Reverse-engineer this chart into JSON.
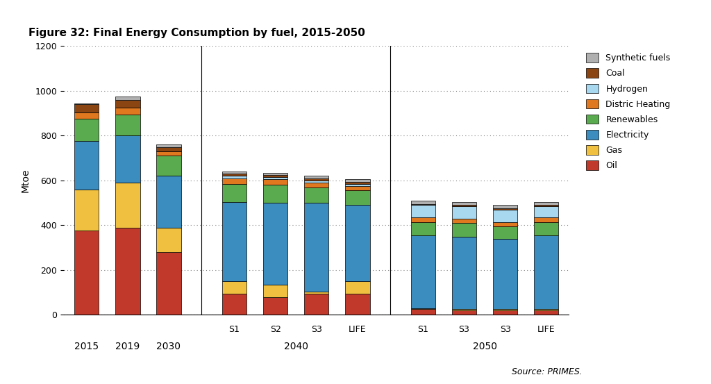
{
  "title": "Figure 32: Final Energy Consumption by fuel, 2015-2050",
  "ylabel": "Mtoe",
  "source": "Source: PRIMES.",
  "ylim": [
    0,
    1200
  ],
  "yticks": [
    0,
    200,
    400,
    600,
    800,
    1000,
    1200
  ],
  "bar_groups": [
    {
      "label": "2015",
      "group": "standalone",
      "sublabel": ""
    },
    {
      "label": "2019",
      "group": "standalone",
      "sublabel": ""
    },
    {
      "label": "2030",
      "group": "standalone",
      "sublabel": ""
    },
    {
      "label": "S1",
      "group": "2040",
      "sublabel": "S1"
    },
    {
      "label": "S2",
      "group": "2040",
      "sublabel": "S2"
    },
    {
      "label": "S3",
      "group": "2040",
      "sublabel": "S3"
    },
    {
      "label": "LIFE",
      "group": "2040",
      "sublabel": "LIFE"
    },
    {
      "label": "S1",
      "group": "2050",
      "sublabel": "S1"
    },
    {
      "label": "S3",
      "group": "2050",
      "sublabel": "S3"
    },
    {
      "label": "S3",
      "group": "2050",
      "sublabel": "S3"
    },
    {
      "label": "LIFE",
      "group": "2050",
      "sublabel": "LIFE"
    }
  ],
  "series": {
    "Oil": [
      375,
      390,
      280,
      95,
      80,
      95,
      95,
      25,
      20,
      20,
      20
    ],
    "Gas": [
      185,
      200,
      110,
      55,
      55,
      10,
      55,
      5,
      5,
      5,
      5
    ],
    "Electricity": [
      215,
      210,
      230,
      355,
      365,
      395,
      340,
      325,
      325,
      315,
      330
    ],
    "Renewables": [
      100,
      95,
      90,
      80,
      80,
      70,
      65,
      60,
      60,
      55,
      60
    ],
    "Distric Heating": [
      30,
      30,
      20,
      25,
      25,
      20,
      20,
      20,
      20,
      20,
      20
    ],
    "Hydrogen": [
      0,
      0,
      0,
      10,
      10,
      10,
      10,
      55,
      55,
      55,
      50
    ],
    "Coal": [
      35,
      35,
      20,
      10,
      10,
      10,
      10,
      5,
      5,
      5,
      5
    ],
    "Synthetic fuels": [
      5,
      15,
      10,
      10,
      10,
      10,
      10,
      15,
      15,
      15,
      15
    ]
  },
  "colors": {
    "Oil": "#c0392b",
    "Gas": "#f0c040",
    "Electricity": "#3b8dc0",
    "Renewables": "#5aaa50",
    "Distric Heating": "#e07820",
    "Hydrogen": "#a8d8f0",
    "Coal": "#8B4513",
    "Synthetic fuels": "#b0b0b0"
  },
  "legend_order": [
    "Synthetic fuels",
    "Coal",
    "Hydrogen",
    "Distric Heating",
    "Renewables",
    "Electricity",
    "Gas",
    "Oil"
  ],
  "background_color": "#ffffff",
  "bar_width": 0.6
}
